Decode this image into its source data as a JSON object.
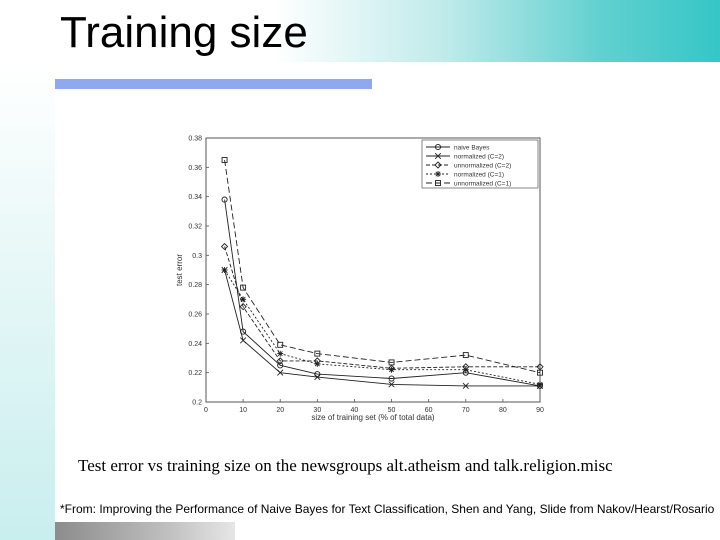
{
  "slide": {
    "title": "Training size",
    "caption": "Test error vs training size on the newsgroups alt.atheism and talk.religion.misc",
    "source_note": "*From: Improving the Performance of Naive Bayes for Text Classification, Shen and Yang, Slide from Nakov/Hearst/Rosario"
  },
  "chart_data": {
    "type": "line",
    "title": "",
    "xlabel": "size of training set (% of total data)",
    "ylabel": "test error",
    "xlim": [
      0,
      90
    ],
    "ylim": [
      0.2,
      0.38
    ],
    "xticks": [
      "0",
      "10",
      "20",
      "30",
      "40",
      "50",
      "60",
      "70",
      "80",
      "90"
    ],
    "yticks": [
      "0.2",
      "0.22",
      "0.24",
      "0.26",
      "0.28",
      "0.3",
      "0.32",
      "0.34",
      "0.36",
      "0.38"
    ],
    "xtick_values": [
      0,
      10,
      20,
      30,
      40,
      50,
      60,
      70,
      80,
      90
    ],
    "ytick_values": [
      0.2,
      0.22,
      0.24,
      0.26,
      0.28,
      0.3,
      0.32,
      0.34,
      0.36,
      0.38
    ],
    "legend_position": "top-right",
    "grid": false,
    "x": [
      5,
      10,
      20,
      30,
      50,
      70,
      90
    ],
    "series": [
      {
        "name": "naive Bayes",
        "marker": "circle",
        "dash": "",
        "values": [
          0.338,
          0.248,
          0.225,
          0.219,
          0.216,
          0.22,
          0.211
        ]
      },
      {
        "name": "normalized (C=2)",
        "marker": "cross",
        "dash": "",
        "values": [
          0.29,
          0.242,
          0.22,
          0.217,
          0.212,
          0.211,
          0.211
        ]
      },
      {
        "name": "unnormalized (C=2)",
        "marker": "diamond",
        "dash": "4 2",
        "values": [
          0.306,
          0.265,
          0.228,
          0.228,
          0.223,
          0.224,
          0.224
        ]
      },
      {
        "name": "normalized (C=1)",
        "marker": "star",
        "dash": "2 2",
        "values": [
          0.29,
          0.27,
          0.233,
          0.226,
          0.222,
          0.222,
          0.212
        ]
      },
      {
        "name": "unnormalized (C=1)",
        "marker": "square",
        "dash": "6 3",
        "values": [
          0.365,
          0.278,
          0.239,
          0.233,
          0.227,
          0.232,
          0.22
        ]
      }
    ]
  }
}
